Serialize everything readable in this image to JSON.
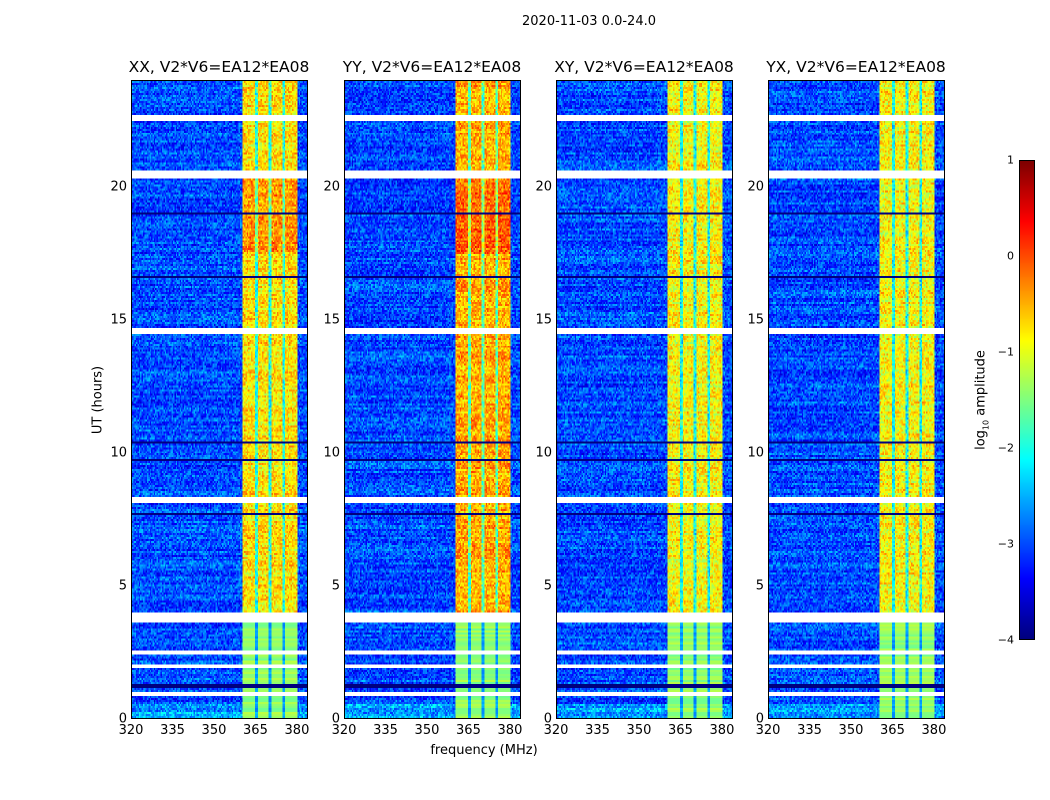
{
  "chart_data": {
    "type": "heatmap",
    "title": "2020-11-03 0.0-24.0",
    "xlabel": "frequency (MHz)",
    "ylabel": "UT (hours)",
    "xlim": [
      320,
      384
    ],
    "ylim": [
      0,
      24
    ],
    "xticks": [
      "320",
      "335",
      "350",
      "365",
      "380"
    ],
    "yticks": [
      "0",
      "5",
      "10",
      "15",
      "20"
    ],
    "panels": [
      {
        "title": "XX, V2*V6=EA12*EA08",
        "band_peak": -0.6
      },
      {
        "title": "YY, V2*V6=EA12*EA08",
        "band_peak": -0.3
      },
      {
        "title": "XY, V2*V6=EA12*EA08",
        "band_peak": -0.7
      },
      {
        "title": "YX, V2*V6=EA12*EA08",
        "band_peak": -0.7
      }
    ],
    "background_level": -3.0,
    "rfi_band_mhz": [
      360.5,
      380.5
    ],
    "rfi_subband_edges_mhz": [
      365.5,
      370.5,
      375.5
    ],
    "band_onset_hours": 3.8,
    "flagged_hours": [
      [
        0.8,
        1.0
      ],
      [
        1.9,
        2.0
      ],
      [
        2.4,
        2.55
      ],
      [
        3.6,
        3.95
      ],
      [
        8.1,
        8.3
      ],
      [
        14.5,
        14.7
      ],
      [
        20.3,
        20.6
      ],
      [
        22.5,
        22.7
      ]
    ],
    "zero_lines_hours": [
      1.2,
      7.7,
      9.7,
      10.4,
      16.6,
      19.0
    ],
    "colorbar": {
      "label": "log10 amplitude",
      "label_main": "log",
      "label_sub": "10",
      "label_tail": " amplitude",
      "range": [
        -4,
        1
      ],
      "ticks": [
        "1",
        "0",
        "−1",
        "−2",
        "−3",
        "−4"
      ]
    }
  }
}
